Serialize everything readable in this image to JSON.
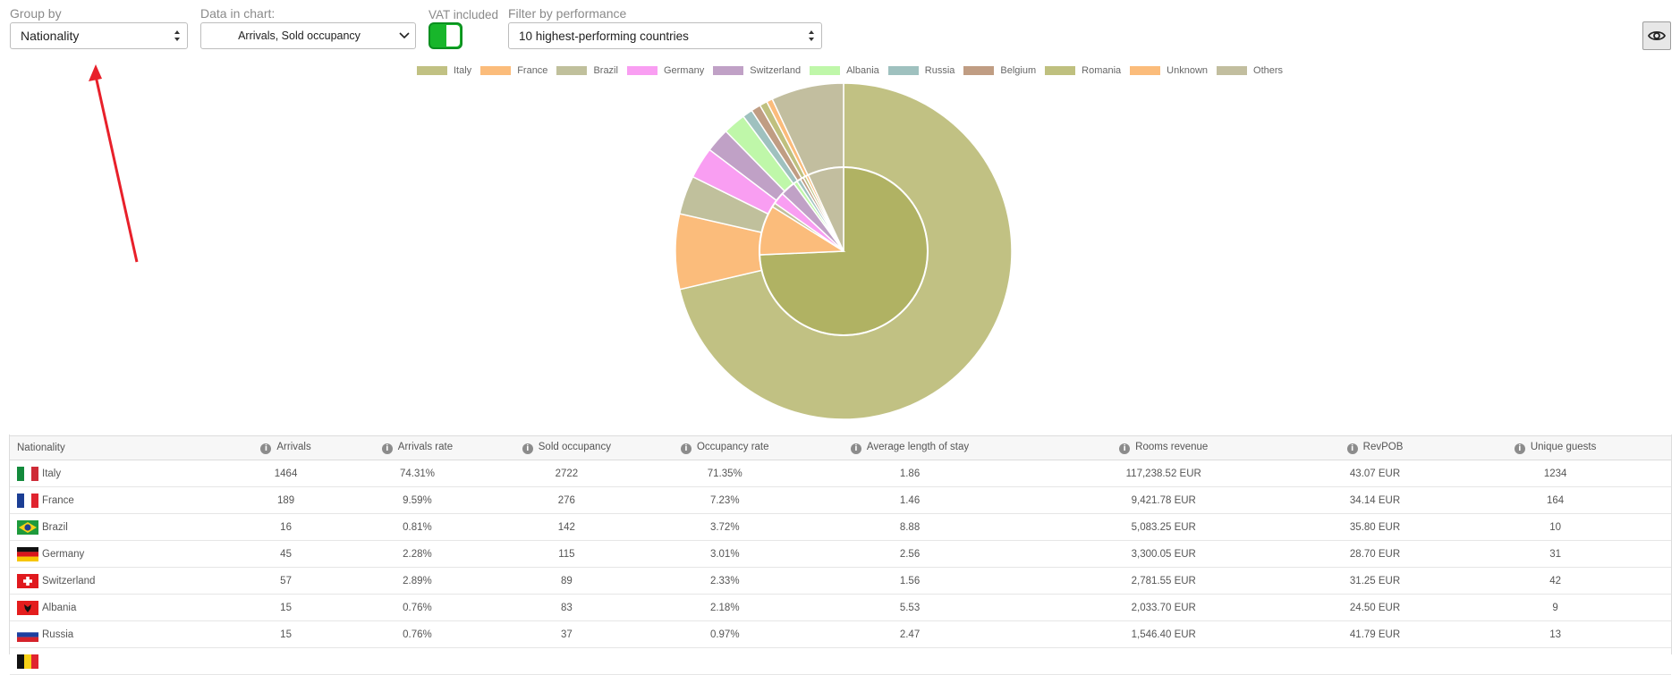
{
  "controls": {
    "group_by": {
      "label": "Group by",
      "value": "Nationality"
    },
    "data_in_chart": {
      "label": "Data in chart:",
      "value": "Arrivals, Sold occupancy"
    },
    "vat": {
      "label": "VAT included",
      "enabled": true
    },
    "filter": {
      "label": "Filter by performance",
      "value": "10 highest-performing countries"
    },
    "visibility_button": {
      "icon": "eye-icon"
    }
  },
  "annotation": {
    "type": "arrow",
    "color": "#e8202a"
  },
  "chart_data": {
    "type": "pie",
    "subtype": "nested-doughnut",
    "legend_position": "top",
    "legend": [
      "Italy",
      "France",
      "Brazil",
      "Germany",
      "Switzerland",
      "Albania",
      "Russia",
      "Belgium",
      "Romania",
      "Unknown",
      "Others"
    ],
    "colors": [
      "#c1c183",
      "#fbbc7b",
      "#c0c09c",
      "#f99ef2",
      "#c0a1c6",
      "#bff7a9",
      "#9fc1bf",
      "#c09d83",
      "#bfc07f",
      "#fbbc7b",
      "#c2be9f"
    ],
    "series": [
      {
        "name": "Arrivals",
        "ring": "inner",
        "values": [
          1464,
          189,
          16,
          45,
          57,
          15,
          15,
          12,
          11,
          10,
          136
        ]
      },
      {
        "name": "Sold occupancy",
        "ring": "outer",
        "values": [
          2722,
          276,
          142,
          115,
          89,
          83,
          37,
          35,
          28,
          22,
          266
        ]
      }
    ]
  },
  "table": {
    "columns": [
      {
        "label": "Nationality",
        "info": false
      },
      {
        "label": "Arrivals",
        "info": true
      },
      {
        "label": "Arrivals rate",
        "info": true
      },
      {
        "label": "Sold occupancy",
        "info": true
      },
      {
        "label": "Occupancy rate",
        "info": true
      },
      {
        "label": "Average length of stay",
        "info": true
      },
      {
        "label": "Rooms revenue",
        "info": true
      },
      {
        "label": "RevPOB",
        "info": true
      },
      {
        "label": "Unique guests",
        "info": true
      }
    ],
    "rows": [
      {
        "country": "Italy",
        "flag": "it",
        "cells": [
          "1464",
          "74.31%",
          "2722",
          "71.35%",
          "1.86",
          "117,238.52 EUR",
          "43.07 EUR",
          "1234"
        ]
      },
      {
        "country": "France",
        "flag": "fr",
        "cells": [
          "189",
          "9.59%",
          "276",
          "7.23%",
          "1.46",
          "9,421.78 EUR",
          "34.14 EUR",
          "164"
        ]
      },
      {
        "country": "Brazil",
        "flag": "br",
        "cells": [
          "16",
          "0.81%",
          "142",
          "3.72%",
          "8.88",
          "5,083.25 EUR",
          "35.80 EUR",
          "10"
        ]
      },
      {
        "country": "Germany",
        "flag": "de",
        "cells": [
          "45",
          "2.28%",
          "115",
          "3.01%",
          "2.56",
          "3,300.05 EUR",
          "28.70 EUR",
          "31"
        ]
      },
      {
        "country": "Switzerland",
        "flag": "ch",
        "cells": [
          "57",
          "2.89%",
          "89",
          "2.33%",
          "1.56",
          "2,781.55 EUR",
          "31.25 EUR",
          "42"
        ]
      },
      {
        "country": "Albania",
        "flag": "al",
        "cells": [
          "15",
          "0.76%",
          "83",
          "2.18%",
          "5.53",
          "2,033.70 EUR",
          "24.50 EUR",
          "9"
        ]
      },
      {
        "country": "Russia",
        "flag": "ru",
        "cells": [
          "15",
          "0.76%",
          "37",
          "0.97%",
          "2.47",
          "1,546.40 EUR",
          "41.79 EUR",
          "13"
        ]
      }
    ]
  }
}
